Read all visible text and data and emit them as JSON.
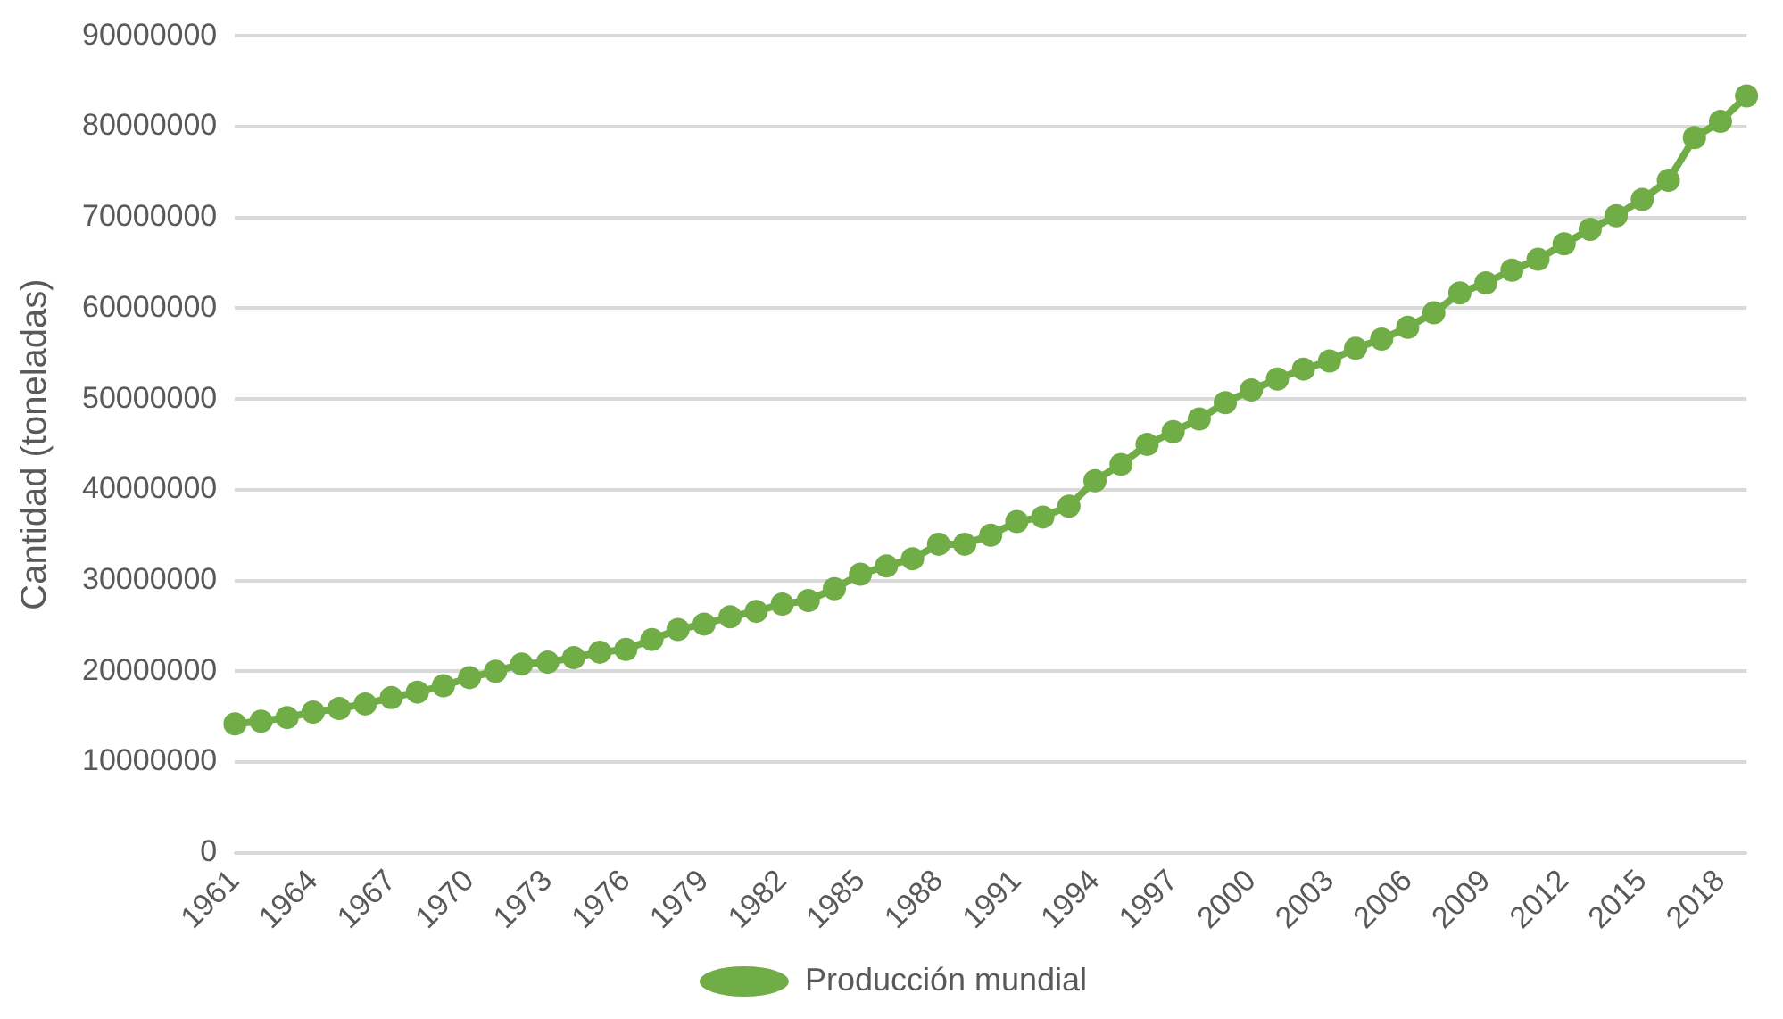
{
  "chart_data": {
    "type": "line",
    "ylabel": "Cantidad (toneladas)",
    "categories": [
      "1961",
      null,
      null,
      "1964",
      null,
      null,
      "1967",
      null,
      null,
      "1970",
      null,
      null,
      "1973",
      null,
      null,
      "1976",
      null,
      null,
      "1979",
      null,
      null,
      "1982",
      null,
      null,
      "1985",
      null,
      null,
      "1988",
      null,
      null,
      "1991",
      null,
      null,
      "1994",
      null,
      null,
      "1997",
      null,
      null,
      "2000",
      null,
      null,
      "2003",
      null,
      null,
      "2006",
      null,
      null,
      "2009",
      null,
      null,
      "2012",
      null,
      null,
      "2015",
      null,
      null,
      "2018",
      null
    ],
    "series": [
      {
        "name": "Producción mundial",
        "color": "#70ad47",
        "values": [
          14200000,
          14500000,
          14900000,
          15500000,
          15900000,
          16400000,
          17100000,
          17700000,
          18400000,
          19300000,
          20000000,
          20800000,
          21000000,
          21500000,
          22100000,
          22400000,
          23500000,
          24600000,
          25200000,
          26000000,
          26600000,
          27400000,
          27800000,
          29100000,
          30700000,
          31600000,
          32400000,
          34000000,
          34000000,
          35000000,
          36500000,
          37000000,
          38200000,
          41000000,
          42800000,
          45000000,
          46400000,
          47800000,
          49600000,
          51000000,
          52200000,
          53300000,
          54200000,
          55600000,
          56600000,
          57900000,
          59500000,
          61700000,
          62800000,
          64200000,
          65400000,
          67100000,
          68700000,
          70200000,
          72000000,
          74100000,
          78800000,
          80600000,
          83400000
        ]
      }
    ],
    "ylim": [
      0,
      90000000
    ],
    "yticks": [
      0,
      10000000,
      20000000,
      30000000,
      40000000,
      50000000,
      60000000,
      70000000,
      80000000,
      90000000
    ],
    "grid": "y",
    "legend": "bottom",
    "marker": "circle",
    "line_style": "solid"
  }
}
